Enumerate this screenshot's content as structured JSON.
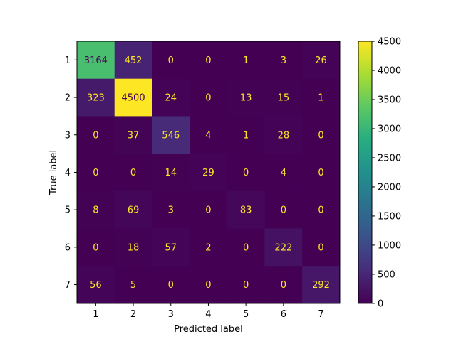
{
  "chart_data": {
    "type": "heatmap",
    "title": "",
    "xlabel": "Predicted label",
    "ylabel": "True label",
    "x_categories": [
      "1",
      "2",
      "3",
      "4",
      "5",
      "6",
      "7"
    ],
    "y_categories": [
      "1",
      "2",
      "3",
      "4",
      "5",
      "6",
      "7"
    ],
    "matrix": [
      [
        3164,
        452,
        0,
        0,
        1,
        3,
        26
      ],
      [
        323,
        4500,
        24,
        0,
        13,
        15,
        1
      ],
      [
        0,
        37,
        546,
        4,
        1,
        28,
        0
      ],
      [
        0,
        0,
        14,
        29,
        0,
        4,
        0
      ],
      [
        8,
        69,
        3,
        0,
        83,
        0,
        0
      ],
      [
        0,
        18,
        57,
        2,
        0,
        222,
        0
      ],
      [
        56,
        5,
        0,
        0,
        0,
        0,
        292
      ]
    ],
    "colormap": "viridis",
    "vmin": 0,
    "vmax": 4500,
    "colorbar_ticks": [
      0,
      500,
      1000,
      1500,
      2000,
      2500,
      3000,
      3500,
      4000,
      4500
    ],
    "colors": {
      "text_on_dark": "#fde725",
      "text_on_light": "#440154"
    }
  }
}
